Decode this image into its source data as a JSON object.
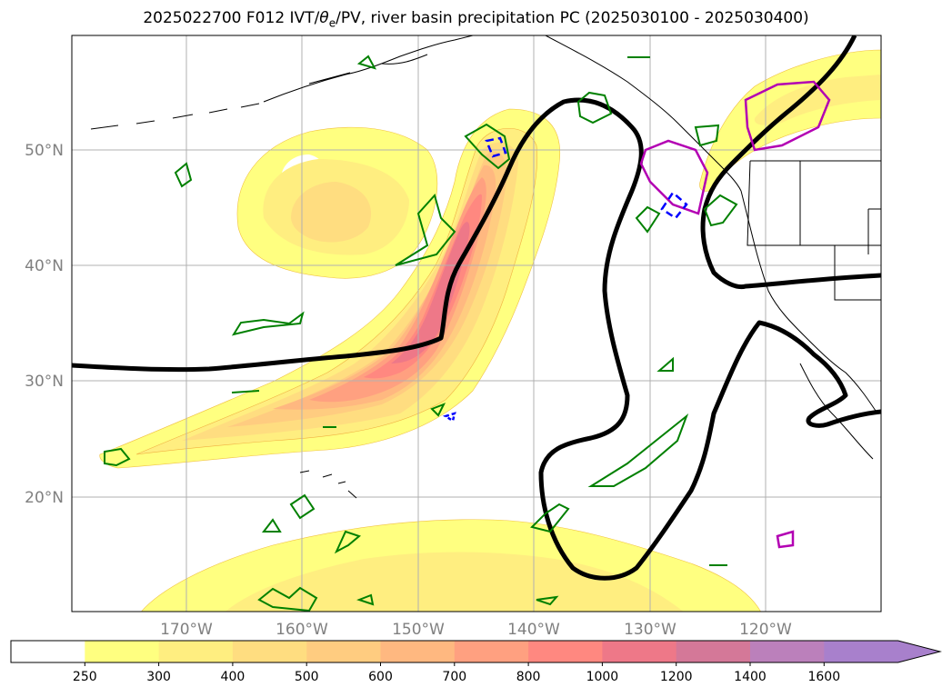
{
  "title": {
    "prefix": "2025022700 F012 IVT/",
    "theta": "θ",
    "theta_sub": "e",
    "suffix": "/PV, river basin precipitation PC (2025030100 - 2025030400)"
  },
  "map": {
    "lon_labels": [
      "170°W",
      "160°W",
      "150°W",
      "140°W",
      "130°W",
      "120°W"
    ],
    "lat_labels": [
      "50°N",
      "40°N",
      "30°N",
      "20°N"
    ],
    "label_color": "#808080",
    "grid_color": "#b0b0b0"
  },
  "colorbar": {
    "ticks": [
      "250",
      "300",
      "400",
      "500",
      "600",
      "700",
      "800",
      "1000",
      "1200",
      "1400",
      "1600"
    ],
    "colors": [
      "#ffffff",
      "#ffff80",
      "#ffee80",
      "#ffdd80",
      "#ffcc80",
      "#ffb880",
      "#ffa080",
      "#ff8880",
      "#ee7888",
      "#d47898",
      "#bb80bb",
      "#a880cc"
    ],
    "extend": "max"
  },
  "legend_colors": {
    "ivt_outline": "#e6a01e",
    "pv_contour": "#000000",
    "theta_e": "#008000",
    "basin_neg": "#0000ff",
    "basin_pos": "#b300b3"
  }
}
